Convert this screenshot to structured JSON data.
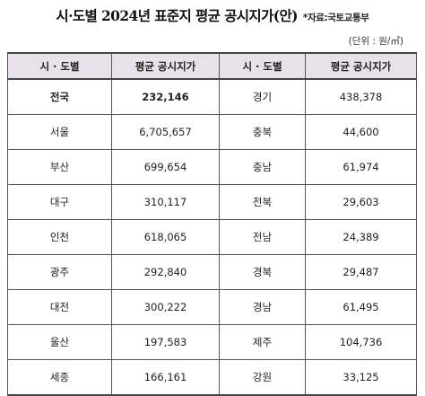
{
  "title": "시·도별 2024년 표준지 평균 공시지가(안)",
  "source": "*자료:국토교통부",
  "unit": "(단위 : 원/㎡)",
  "table": {
    "headers": [
      "시 · 도별",
      "평균 공시지가",
      "시 · 도별",
      "평균 공시지가"
    ],
    "rows": [
      {
        "left_region": "전국",
        "left_value": "232,146",
        "right_region": "경기",
        "right_value": "438,378"
      },
      {
        "left_region": "서울",
        "left_value": "6,705,657",
        "right_region": "충북",
        "right_value": "44,600"
      },
      {
        "left_region": "부산",
        "left_value": "699,654",
        "right_region": "충남",
        "right_value": "61,974"
      },
      {
        "left_region": "대구",
        "left_value": "310,117",
        "right_region": "전북",
        "right_value": "29,603"
      },
      {
        "left_region": "인천",
        "left_value": "618,065",
        "right_region": "전남",
        "right_value": "24,389"
      },
      {
        "left_region": "광주",
        "left_value": "292,840",
        "right_region": "경북",
        "right_value": "29,487"
      },
      {
        "left_region": "대전",
        "left_value": "300,222",
        "right_region": "경남",
        "right_value": "61,495"
      },
      {
        "left_region": "울산",
        "left_value": "197,583",
        "right_region": "제주",
        "right_value": "104,736"
      },
      {
        "left_region": "세종",
        "left_value": "166,161",
        "right_region": "강원",
        "right_value": "33,125"
      }
    ]
  },
  "colors": {
    "header_background": "#e7e1ec",
    "highlight_text": "#e0605a"
  }
}
